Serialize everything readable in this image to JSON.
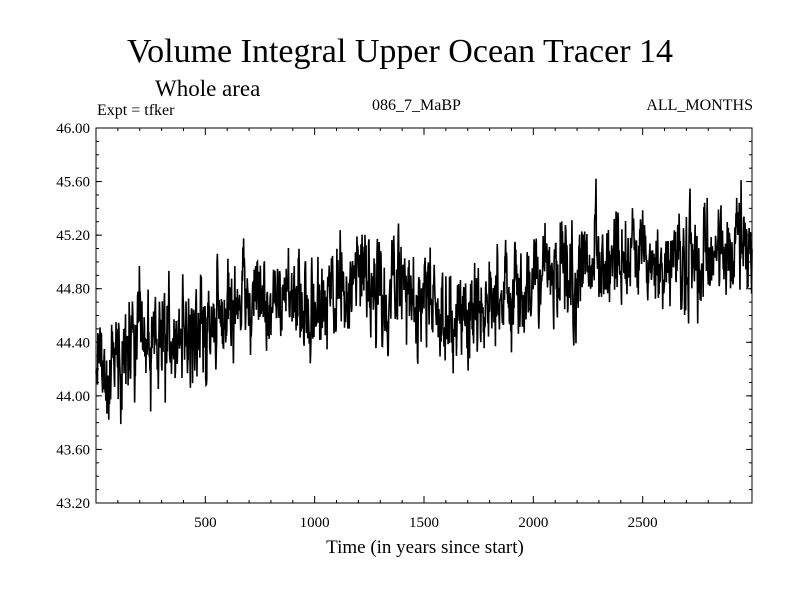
{
  "header": {
    "title": "Volume Integral Upper Ocean Tracer 14",
    "subtitle": "Whole area",
    "expt": "Expt = tfker",
    "run_id": "086_7_MaBP",
    "months": "ALL_MONTHS"
  },
  "chart_data": {
    "type": "line",
    "title": "Volume Integral Upper Ocean Tracer 14",
    "subtitle": "Whole area",
    "xlabel": "Time (in years since start)",
    "ylabel": "",
    "xlim": [
      0,
      3000
    ],
    "ylim": [
      43.2,
      46.0
    ],
    "x_ticks": [
      500,
      1000,
      1500,
      2000,
      2500
    ],
    "x_tick_labels": [
      "500",
      "1000",
      "1500",
      "2000",
      "2500"
    ],
    "y_ticks": [
      43.2,
      43.6,
      44.0,
      44.4,
      44.8,
      45.2,
      45.6,
      46.0
    ],
    "y_tick_labels": [
      "43.20",
      "43.60",
      "44.00",
      "44.40",
      "44.80",
      "45.20",
      "45.60",
      "46.00"
    ],
    "grid": false,
    "line_color": "#000000",
    "series": [
      {
        "x": [
          0,
          50,
          100,
          150,
          200,
          250,
          300,
          350,
          400,
          450,
          500,
          550,
          600,
          650,
          700,
          750,
          800,
          850,
          900,
          950,
          1000,
          1050,
          1100,
          1150,
          1200,
          1250,
          1300,
          1350,
          1400,
          1450,
          1500,
          1550,
          1600,
          1650,
          1700,
          1750,
          1800,
          1850,
          1900,
          1950,
          2000,
          2050,
          2100,
          2150,
          2200,
          2250,
          2300,
          2350,
          2400,
          2450,
          2500,
          2550,
          2600,
          2650,
          2700,
          2750,
          2800,
          2850,
          2900,
          2950,
          3000
        ],
        "values": [
          44.2,
          44.2,
          44.3,
          44.4,
          44.35,
          44.4,
          44.5,
          44.45,
          44.5,
          44.45,
          44.5,
          44.55,
          44.6,
          44.7,
          44.8,
          44.75,
          44.7,
          44.75,
          44.7,
          44.65,
          44.6,
          44.7,
          44.75,
          44.8,
          44.95,
          44.8,
          44.7,
          44.8,
          44.85,
          44.8,
          44.7,
          44.7,
          44.65,
          44.6,
          44.65,
          44.7,
          44.75,
          44.7,
          44.8,
          44.75,
          44.85,
          44.9,
          44.9,
          44.95,
          44.9,
          44.95,
          45.0,
          45.05,
          44.95,
          45.0,
          44.95,
          44.9,
          44.95,
          45.0,
          44.95,
          44.95,
          45.0,
          45.05,
          45.1,
          45.2,
          45.0
        ]
      }
    ]
  }
}
